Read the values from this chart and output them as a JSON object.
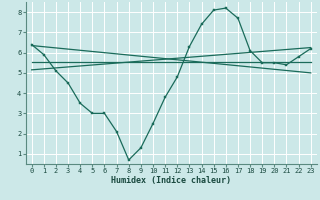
{
  "xlabel": "Humidex (Indice chaleur)",
  "bg_color": "#cce8e8",
  "grid_color": "#b8d8d8",
  "line_color": "#1a6b5a",
  "spine_color": "#5a8a80",
  "xlim": [
    -0.5,
    23.5
  ],
  "ylim": [
    0.5,
    8.5
  ],
  "yticks": [
    1,
    2,
    3,
    4,
    5,
    6,
    7,
    8
  ],
  "xticks": [
    0,
    1,
    2,
    3,
    4,
    5,
    6,
    7,
    8,
    9,
    10,
    11,
    12,
    13,
    14,
    15,
    16,
    17,
    18,
    19,
    20,
    21,
    22,
    23
  ],
  "line1_x": [
    0,
    1,
    2,
    3,
    4,
    5,
    6,
    7,
    8,
    9,
    10,
    11,
    12,
    13,
    14,
    15,
    16,
    17,
    18,
    19,
    20,
    21,
    22,
    23
  ],
  "line1_y": [
    6.4,
    5.9,
    5.1,
    4.5,
    3.5,
    3.0,
    3.0,
    2.1,
    0.7,
    1.3,
    2.5,
    3.8,
    4.8,
    6.3,
    7.4,
    8.1,
    8.2,
    7.7,
    6.1,
    5.5,
    5.5,
    5.4,
    5.8,
    6.2
  ],
  "line2_x": [
    0,
    23
  ],
  "line2_y": [
    5.15,
    6.25
  ],
  "line3_x": [
    0,
    23
  ],
  "line3_y": [
    5.55,
    5.55
  ],
  "line4_x": [
    0,
    23
  ],
  "line4_y": [
    6.35,
    5.0
  ]
}
